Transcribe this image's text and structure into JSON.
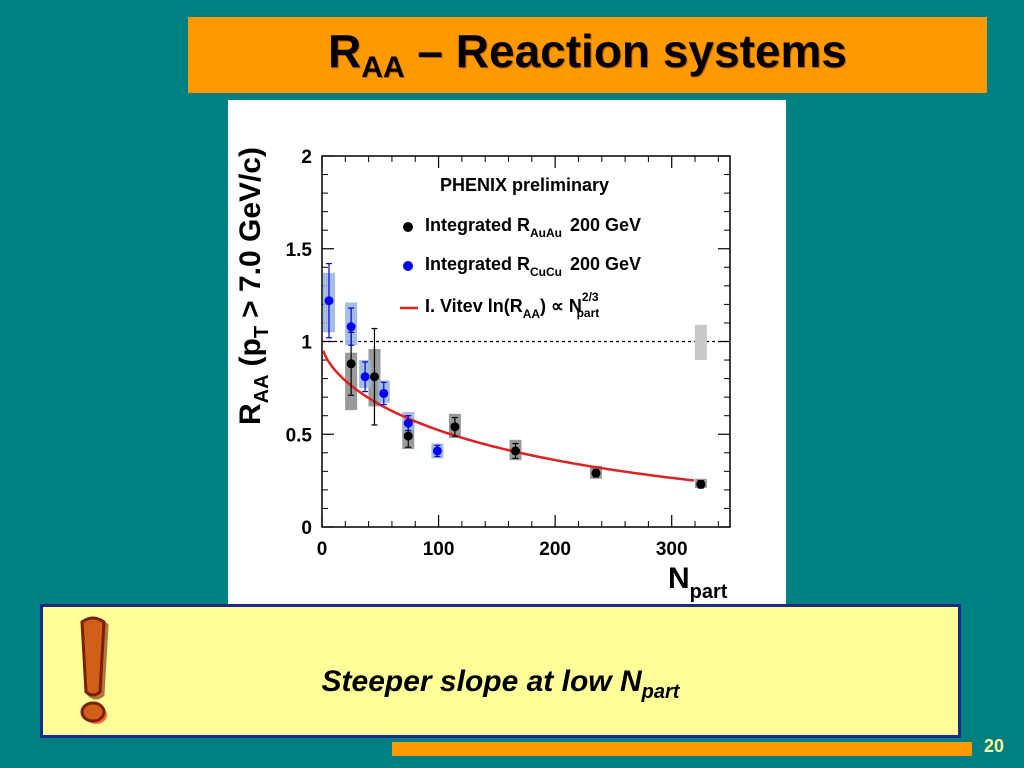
{
  "slide": {
    "title_main": "R",
    "title_sub": "AA",
    "title_rest": " – Reaction systems",
    "note_main": "Steeper slope at low N",
    "note_sub": "part",
    "page_number": "20"
  },
  "chart_data": {
    "type": "scatter",
    "title": "PHENIX preliminary",
    "xlabel_main": "N",
    "xlabel_sub": "part",
    "ylabel_main": "R",
    "ylabel_sub": "AA",
    "ylabel_rest": "(p",
    "ylabel_sub2": "T",
    "ylabel_rest2": "> 7.0 GeV/c)",
    "xlim": [
      0,
      350
    ],
    "ylim": [
      0,
      2
    ],
    "x_ticks": [
      0,
      100,
      200,
      300
    ],
    "x_tick_labels": [
      "0",
      "100",
      "200",
      "300"
    ],
    "y_ticks": [
      0,
      0.5,
      1,
      1.5,
      2
    ],
    "y_tick_labels": [
      "0",
      "0.5",
      "1",
      "1.5",
      "2"
    ],
    "reference_line": 1.0,
    "global_syst": {
      "x": 325,
      "low": 0.9,
      "high": 1.09,
      "color": "#c8c8c8"
    },
    "series": [
      {
        "name_main": "Integrated R",
        "name_sub": "AuAu",
        "name_rest": "200 GeV",
        "color": "#000000",
        "syst_color": "#888888",
        "points": [
          {
            "x": 25,
            "y": 0.88,
            "stat_err": 0.17,
            "sys_low": 0.63,
            "sys_high": 0.94
          },
          {
            "x": 45,
            "y": 0.81,
            "stat_err": 0.26,
            "sys_low": 0.65,
            "sys_high": 0.96
          },
          {
            "x": 74,
            "y": 0.49,
            "stat_err": 0.06,
            "sys_low": 0.42,
            "sys_high": 0.57
          },
          {
            "x": 114,
            "y": 0.54,
            "stat_err": 0.05,
            "sys_low": 0.48,
            "sys_high": 0.61
          },
          {
            "x": 166,
            "y": 0.41,
            "stat_err": 0.04,
            "sys_low": 0.36,
            "sys_high": 0.47
          },
          {
            "x": 235,
            "y": 0.29,
            "stat_err": 0.02,
            "sys_low": 0.26,
            "sys_high": 0.33
          },
          {
            "x": 325,
            "y": 0.23,
            "stat_err": 0.02,
            "sys_low": 0.21,
            "sys_high": 0.26
          }
        ]
      },
      {
        "name_main": "Integrated R",
        "name_sub": "CuCu",
        "name_rest": "200 GeV",
        "color": "#0000ee",
        "syst_color": "#9bb5e0",
        "points": [
          {
            "x": 6,
            "y": 1.22,
            "stat_err": 0.2,
            "sys_low": 1.05,
            "sys_high": 1.37
          },
          {
            "x": 25,
            "y": 1.08,
            "stat_err": 0.1,
            "sys_low": 0.98,
            "sys_high": 1.21
          },
          {
            "x": 37,
            "y": 0.81,
            "stat_err": 0.08,
            "sys_low": 0.75,
            "sys_high": 0.9
          },
          {
            "x": 53,
            "y": 0.72,
            "stat_err": 0.06,
            "sys_low": 0.67,
            "sys_high": 0.79
          },
          {
            "x": 74,
            "y": 0.56,
            "stat_err": 0.04,
            "sys_low": 0.52,
            "sys_high": 0.62
          },
          {
            "x": 99,
            "y": 0.41,
            "stat_err": 0.03,
            "sys_low": 0.37,
            "sys_high": 0.45
          }
        ]
      }
    ],
    "curve": {
      "name_main": "I. Vitev  ln(R",
      "name_sub": "AA",
      "name_rest": ") ∝ N",
      "name_sup": "2/3",
      "name_sub2": "part",
      "color": "#dd2222",
      "x_range": [
        1,
        320
      ],
      "y_at_x1": 0.95,
      "y_at_x320": 0.25
    }
  }
}
